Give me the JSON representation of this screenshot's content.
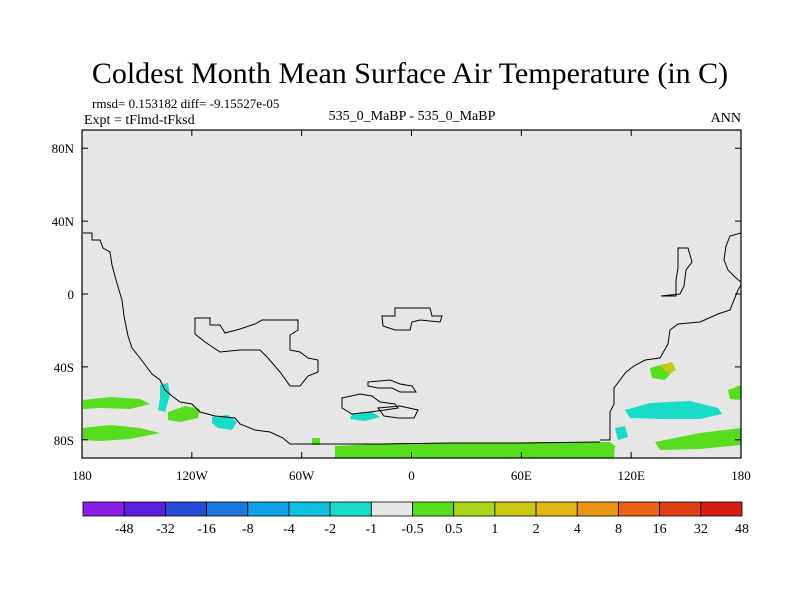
{
  "title": "Coldest Month Mean Surface Air Temperature (in C)",
  "stats_line": "rmsd= 0.153182 diff= -9.15527e-05",
  "experiment_label": "Expt = tFlmd-tFksd",
  "center_label": "535_0_MaBP - 535_0_MaBP",
  "season_label": "ANN",
  "map": {
    "lon_range": [
      -180,
      180
    ],
    "lat_range": [
      -90,
      90
    ],
    "background_color": "#e6e6e6",
    "coast_color": "#000000",
    "lat_ticks": [
      {
        "value": 80,
        "label": "80N"
      },
      {
        "value": 40,
        "label": "40N"
      },
      {
        "value": 0,
        "label": "0"
      },
      {
        "value": -40,
        "label": "40S"
      },
      {
        "value": -80,
        "label": "80S"
      }
    ],
    "lon_ticks": [
      {
        "value": -180,
        "label": "180"
      },
      {
        "value": -120,
        "label": "120W"
      },
      {
        "value": -60,
        "label": "60W"
      },
      {
        "value": 0,
        "label": "0"
      },
      {
        "value": 60,
        "label": "60E"
      },
      {
        "value": 120,
        "label": "120E"
      },
      {
        "value": 180,
        "label": "180"
      }
    ]
  },
  "colorbar": {
    "colors": [
      "#8c1de8",
      "#5a1ee0",
      "#2a4ad8",
      "#1a78e0",
      "#12a0e8",
      "#10c0e0",
      "#18dcc8",
      "#e6e6e6",
      "#58dc1e",
      "#a8d41a",
      "#c8c814",
      "#e0b414",
      "#e89414",
      "#e86414",
      "#e04014",
      "#d81e14"
    ],
    "labels": [
      "-48",
      "-32",
      "-16",
      "-8",
      "-4",
      "-2",
      "-1",
      "-0.5",
      "0.5",
      "1",
      "2",
      "4",
      "8",
      "16",
      "32",
      "48"
    ]
  }
}
